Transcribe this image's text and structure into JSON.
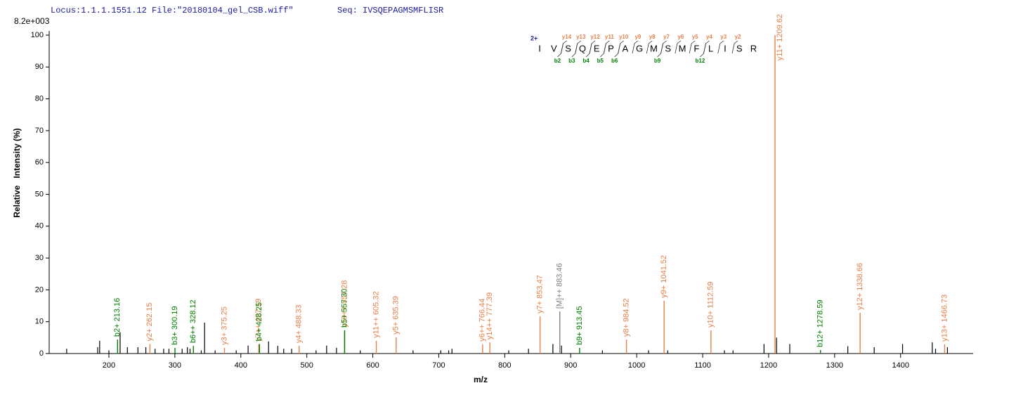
{
  "chart_data": {
    "type": "spectrum",
    "header": {
      "locus": "Locus:1.1.1.1551.12 File:\"20180104_gel_CSB.wiff\"",
      "seq": "Seq: IVSQEPAGMSMFLISR"
    },
    "y_scale_label": "8.2e+003",
    "x_label": "m/z",
    "y_label": "Relative   Intensity (%)",
    "xlim": [
      109.5,
      1510
    ],
    "xticks": [
      200,
      300,
      400,
      500,
      600,
      700,
      800,
      900,
      1000,
      1100,
      1200,
      1300,
      1400
    ],
    "ylim": [
      0,
      100
    ],
    "yticks": [
      0,
      10,
      20,
      30,
      40,
      50,
      60,
      70,
      80,
      90,
      100
    ],
    "peaks": {
      "color": "#000000",
      "x": [
        136,
        183,
        186,
        200,
        217,
        228,
        244,
        256,
        270,
        283,
        291,
        311,
        319,
        323,
        340,
        345,
        361,
        393,
        411,
        442,
        456,
        465,
        477,
        514,
        530,
        545,
        581,
        661,
        703,
        715,
        720,
        806,
        836,
        873,
        886,
        948,
        1018,
        1047,
        1133,
        1146,
        1193,
        1212,
        1232,
        1320,
        1360,
        1403,
        1448,
        1453,
        1471
      ],
      "values": [
        1.5,
        2,
        4,
        1,
        6.7,
        2,
        2,
        2,
        1.5,
        1.5,
        1.5,
        1.5,
        2,
        1.5,
        1,
        9.7,
        1,
        1,
        2.5,
        3.8,
        2.4,
        1.5,
        1.5,
        1,
        2.5,
        1.8,
        1,
        1,
        1,
        1,
        1.5,
        1,
        1.5,
        3,
        2.5,
        1,
        1,
        1,
        1,
        1,
        3,
        5,
        3,
        2.3,
        2,
        3,
        3.5,
        1.5,
        2
      ]
    },
    "annotations": [
      {
        "label": "b2+ 213.16",
        "x": 213.16,
        "value": 4.4,
        "color": "#008000"
      },
      {
        "label": "y2+ 262.15",
        "x": 262.15,
        "value": 3,
        "color": "#e8804a"
      },
      {
        "label": "b3+ 300.19",
        "x": 300.19,
        "value": 1.8,
        "color": "#008000"
      },
      {
        "label": "b6++ 328.12",
        "x": 328.12,
        "value": 2.4,
        "color": "#008000"
      },
      {
        "label": "y3+ 375.25",
        "x": 375.25,
        "value": 1.8,
        "color": "#e8804a"
      },
      {
        "label": "y7++ 427.19",
        "x": 427.19,
        "value": 2.9,
        "color": "#e8804a"
      },
      {
        "label": "b4+ 428.25",
        "x": 428.25,
        "value": 3,
        "color": "#008000"
      },
      {
        "label": "y4+ 488.33",
        "x": 488.33,
        "value": 2.4,
        "color": "#e8804a"
      },
      {
        "label": "y10++ 557.28",
        "x": 557.28,
        "value": 7.3,
        "color": "#e8804a"
      },
      {
        "label": "b5+ 557.30",
        "x": 557.3,
        "value": 7.3,
        "color": "#008000"
      },
      {
        "label": "y11++ 605.32",
        "x": 605.32,
        "value": 4,
        "color": "#e8804a"
      },
      {
        "label": "y5+ 635.39",
        "x": 635.39,
        "value": 5.1,
        "color": "#e8804a"
      },
      {
        "label": "y6++ 766.44",
        "x": 766.44,
        "value": 2.9,
        "color": "#e8804a"
      },
      {
        "label": "y14++ 777.39",
        "x": 777.39,
        "value": 3.5,
        "color": "#e8804a"
      },
      {
        "label": "y7+ 853.47",
        "x": 853.47,
        "value": 11.7,
        "color": "#e8804a"
      },
      {
        "label": "[M]++ 883.46",
        "x": 883.46,
        "value": 13.2,
        "color": "#808080"
      },
      {
        "label": "b9+ 913.45",
        "x": 913.45,
        "value": 1.8,
        "color": "#008000"
      },
      {
        "label": "y8+ 984.52",
        "x": 984.52,
        "value": 4.4,
        "color": "#e8804a"
      },
      {
        "label": "y9+ 1041.52",
        "x": 1041.52,
        "value": 16.6,
        "color": "#e8804a"
      },
      {
        "label": "y10+ 1112.59",
        "x": 1112.59,
        "value": 7.3,
        "color": "#e8804a"
      },
      {
        "label": "y11+ 1209.62",
        "x": 1209.62,
        "value": 100,
        "color": "#e8804a"
      },
      {
        "label": "b12+ 1278.59",
        "x": 1278.59,
        "value": 1.1,
        "color": "#008000"
      },
      {
        "label": "y12+ 1338.66",
        "x": 1338.66,
        "value": 12.8,
        "color": "#e8804a"
      },
      {
        "label": "y13+ 1466.73",
        "x": 1466.73,
        "value": 2.9,
        "color": "#e8804a"
      }
    ],
    "sequence": {
      "charge": "2+",
      "residues": [
        "I",
        "V",
        "S",
        "Q",
        "E",
        "P",
        "A",
        "G",
        "M",
        "S",
        "M",
        "F",
        "L",
        "I",
        "S",
        "R"
      ],
      "y_ions": [
        "y14",
        "y13",
        "y12",
        "y11",
        "y10",
        "y9",
        "y8",
        "y7",
        "y6",
        "y5",
        "y4",
        "y3",
        "y2"
      ],
      "b_ions": [
        "b2",
        "b3",
        "b4",
        "b5",
        "b6",
        "b9",
        "b12"
      ],
      "y_color": "#e8804a",
      "b_color": "#008000"
    }
  }
}
